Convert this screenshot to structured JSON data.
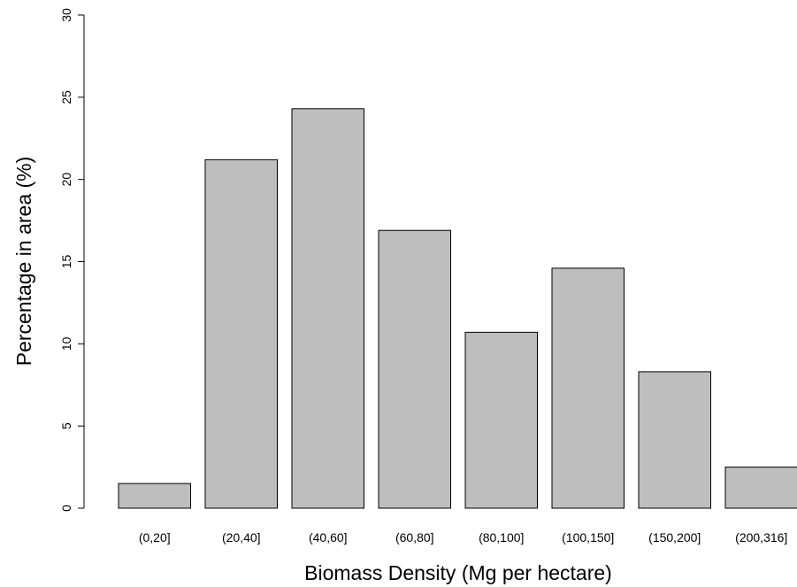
{
  "chart_data": {
    "type": "bar",
    "title": "",
    "xlabel": "Biomass Density (Mg per hectare)",
    "ylabel": "Percentage in area (%)",
    "categories": [
      "(0,20]",
      "(20,40]",
      "(40,60]",
      "(60,80]",
      "(80,100]",
      "(100,150]",
      "(150,200]",
      "(200,316]"
    ],
    "values": [
      1.5,
      21.2,
      24.3,
      16.9,
      10.7,
      14.6,
      8.3,
      2.5
    ],
    "ylim": [
      0,
      30
    ],
    "yticks": [
      0,
      5,
      10,
      15,
      20,
      25,
      30
    ],
    "grid": false,
    "colors": {
      "bar_fill": "#bebebe",
      "bar_stroke": "#000000"
    }
  }
}
